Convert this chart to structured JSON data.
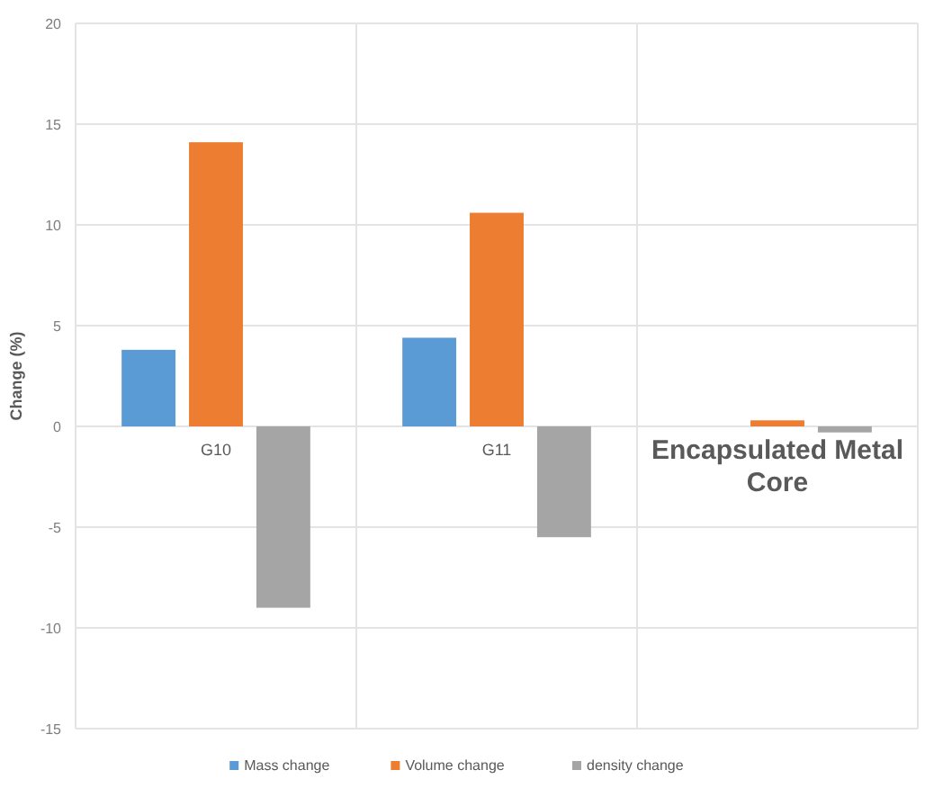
{
  "chart_data": {
    "type": "bar",
    "ylabel": "Change (%)",
    "categories": [
      "G10",
      "G11",
      "Encapsulated Metal Core"
    ],
    "series": [
      {
        "name": "Mass change",
        "color": "#5b9bd5",
        "values": [
          3.8,
          4.4,
          0
        ]
      },
      {
        "name": "Volume change",
        "color": "#ed7d31",
        "values": [
          14.1,
          10.6,
          0.3
        ]
      },
      {
        "name": "density change",
        "color": "#a5a5a5",
        "values": [
          -9.0,
          -5.5,
          -0.3
        ]
      }
    ],
    "ylim": [
      -15,
      20
    ],
    "yticks": [
      -15,
      -10,
      -5,
      0,
      5,
      10,
      15,
      20
    ],
    "grid": true,
    "legend": "bottom"
  }
}
